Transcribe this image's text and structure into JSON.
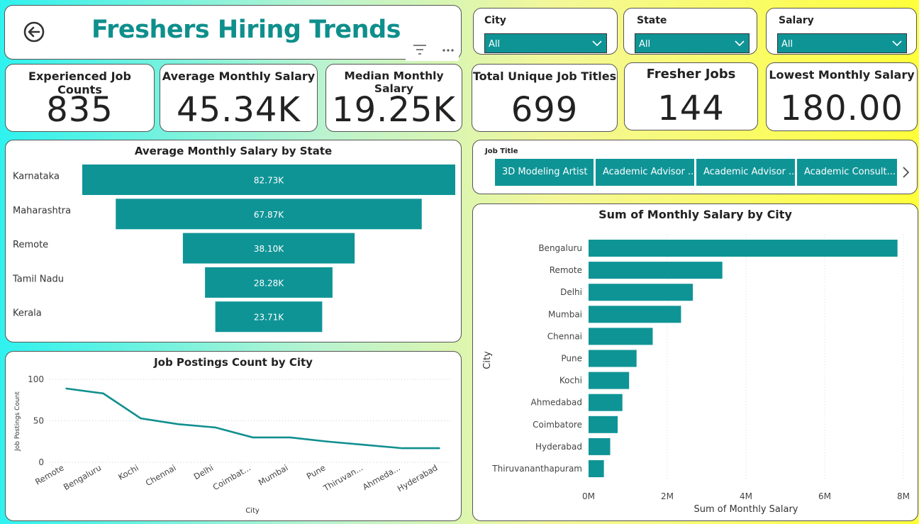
{
  "header": {
    "title": "Freshers Hiring Trends"
  },
  "kpis": [
    {
      "label": "Experienced Job Counts",
      "value": "835"
    },
    {
      "label": "Average Monthly Salary",
      "value": "45.34K"
    },
    {
      "label": "Median Monthly Salary",
      "value": "19.25K"
    },
    {
      "label": "Total Unique Job Titles",
      "value": "699"
    },
    {
      "label": "Fresher Jobs",
      "value": "144"
    },
    {
      "label": "Lowest Monthly Salary",
      "value": "180.00"
    }
  ],
  "slicers": [
    {
      "label": "City",
      "value": "All"
    },
    {
      "label": "State",
      "value": "All"
    },
    {
      "label": "Salary",
      "value": "All"
    }
  ],
  "job_title_slicer": {
    "label": "Job Title",
    "items": [
      "3D Modeling Artist",
      "Academic Advisor ...",
      "Academic Advisor ...",
      "Academic Consult..."
    ]
  },
  "colors": {
    "accent": "#0f9496",
    "title": "#0f8f8c",
    "line": "#108f8f"
  },
  "chart_data": [
    {
      "type": "bar",
      "title": "Average Monthly Salary by State",
      "categories": [
        "Karnataka",
        "Maharashtra",
        "Remote",
        "Tamil Nadu",
        "Kerala"
      ],
      "values": [
        82730,
        67870,
        38100,
        28280,
        23710
      ],
      "labels": [
        "82.73K",
        "67.87K",
        "38.10K",
        "28.28K",
        "23.71K"
      ],
      "style": "funnel"
    },
    {
      "type": "line",
      "title": "Job Postings Count by City",
      "xlabel": "City",
      "ylabel": "Job Postings Count",
      "categories": [
        "Remote",
        "Bengaluru",
        "Kochi",
        "Chennai",
        "Delhi",
        "Coimbat...",
        "Mumbai",
        "Pune",
        "Thiruvan...",
        "Ahmeda...",
        "Hyderabad"
      ],
      "values": [
        89,
        83,
        53,
        46,
        42,
        30,
        30,
        25,
        21,
        17,
        17
      ],
      "yticks": [
        "0",
        "50",
        "100"
      ],
      "ylim": [
        0,
        100
      ],
      "grid": true
    },
    {
      "type": "bar",
      "title": "Sum of Monthly Salary by City",
      "xlabel": "Sum of Monthly Salary",
      "ylabel": "City",
      "categories": [
        "Bengaluru",
        "Remote",
        "Delhi",
        "Mumbai",
        "Chennai",
        "Pune",
        "Kochi",
        "Ahmedabad",
        "Coimbatore",
        "Hyderabad",
        "Thiruvananthapuram"
      ],
      "values": [
        7850000,
        3400000,
        2650000,
        2350000,
        1630000,
        1220000,
        1030000,
        860000,
        740000,
        550000,
        390000
      ],
      "xticks": [
        "0M",
        "2M",
        "4M",
        "6M",
        "8M"
      ],
      "xlim": [
        0,
        8000000
      ],
      "grid": true
    }
  ]
}
